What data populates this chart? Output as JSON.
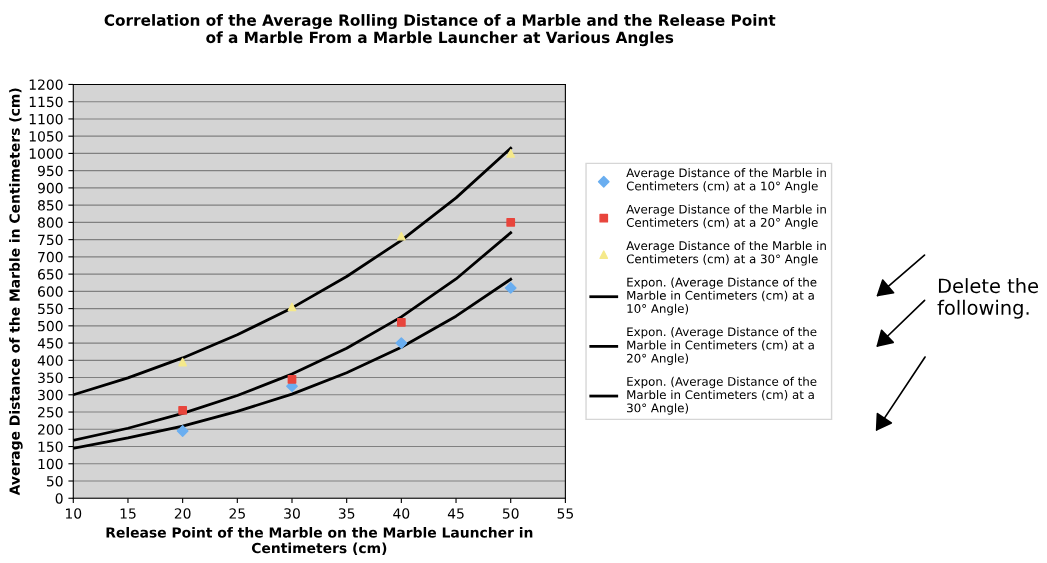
{
  "chart_data": {
    "type": "scatter",
    "title": "Correlation of the Average Rolling Distance of a Marble and the Release Point\nof a Marble From a Marble Launcher at Various Angles",
    "xlabel": "Release Point of the Marble on the Marble Launcher in\nCentimeters (cm)",
    "ylabel": "Average Distance of the Marble in Centimeters (cm)",
    "x": [
      20,
      30,
      40,
      50
    ],
    "series": [
      {
        "name": "Average Distance of the Marble in Centimeters (cm) at a 10° Angle",
        "color": "#6aaef0",
        "marker": "diamond",
        "values": [
          195,
          325,
          450,
          610
        ]
      },
      {
        "name": "Average Distance of the Marble in Centimeters (cm) at a 20° Angle",
        "color": "#e8453c",
        "marker": "square",
        "values": [
          255,
          345,
          510,
          800
        ]
      },
      {
        "name": "Average Distance of the Marble in Centimeters (cm) at a 30° Angle",
        "color": "#f5e98a",
        "marker": "triangle",
        "values": [
          395,
          555,
          760,
          1000
        ]
      },
      {
        "name": "Expon. (Average Distance of the Marble in Centimeters (cm) at a 10° Angle)",
        "type": "line",
        "color": "#000000",
        "marker": "none",
        "x": [
          10,
          15,
          20,
          25,
          30,
          35,
          40,
          45,
          50
        ],
        "values": [
          145,
          175,
          209,
          252,
          302,
          364,
          438,
          528,
          635
        ]
      },
      {
        "name": "Expon. (Average Distance of the Marble in Centimeters (cm) at a 20° Angle)",
        "type": "line",
        "color": "#000000",
        "marker": "none",
        "x": [
          10,
          15,
          20,
          25,
          30,
          35,
          40,
          45,
          50
        ],
        "values": [
          168,
          203,
          246,
          298,
          360,
          435,
          526,
          636,
          770
        ]
      },
      {
        "name": "Expon. (Average Distance of the Marble in Centimeters (cm) at a 30° Angle)",
        "type": "line",
        "color": "#000000",
        "marker": "none",
        "x": [
          10,
          15,
          20,
          25,
          30,
          35,
          40,
          45,
          50
        ],
        "values": [
          300,
          349,
          407,
          474,
          552,
          643,
          748,
          871,
          1015
        ]
      }
    ],
    "xlim": [
      10,
      55
    ],
    "xticks": [
      10,
      15,
      20,
      25,
      30,
      35,
      40,
      45,
      50,
      55
    ],
    "ylim": [
      0,
      1200
    ],
    "yticks": [
      0,
      50,
      100,
      150,
      200,
      250,
      300,
      350,
      400,
      450,
      500,
      550,
      600,
      650,
      700,
      750,
      800,
      850,
      900,
      950,
      1000,
      1050,
      1100,
      1150,
      1200
    ],
    "grid": "y",
    "legend": "right",
    "annotations": [
      "Delete the\nfollowing."
    ]
  }
}
